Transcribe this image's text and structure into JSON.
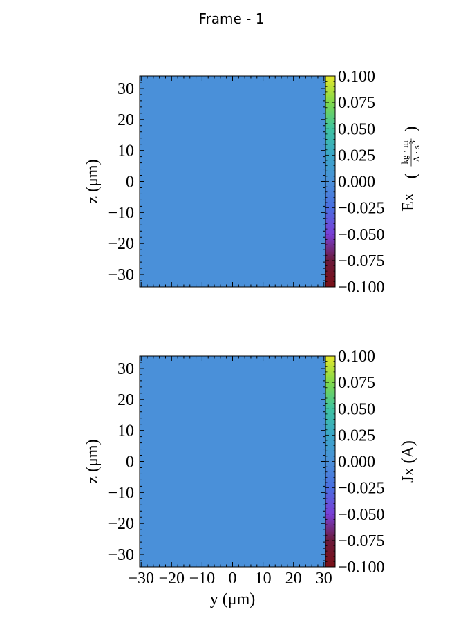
{
  "figure": {
    "title": "Frame - 1"
  },
  "colormap": [
    "#7a0f16",
    "#6b1a3a",
    "#7a3fd6",
    "#4a6ee0",
    "#4a90d9",
    "#3aa6c8",
    "#3ec3a0",
    "#7fd84a",
    "#e8e82a"
  ],
  "chart_data": [
    {
      "type": "heatmap",
      "title": "",
      "xlabel": "",
      "ylabel": "z  (μm)",
      "xlim": [
        -30.5,
        30.5
      ],
      "ylim": [
        -34,
        34
      ],
      "x_ticks": [],
      "y_ticks": [
        -30,
        -20,
        -10,
        0,
        10,
        20,
        30
      ],
      "y_tick_labels": [
        "−30",
        "−20",
        "−10",
        "0",
        "10",
        "20",
        "30"
      ],
      "field_value": 0.0,
      "fill_color": "#4a90d9",
      "colorbar": {
        "label": "Ex",
        "unit_numerator": "kg · m",
        "unit_denominator": "A · s",
        "unit_power": "3",
        "range": [
          -0.1,
          0.1
        ],
        "ticks": [
          -0.1,
          -0.075,
          -0.05,
          -0.025,
          0,
          0.025,
          0.05,
          0.075,
          0.1
        ],
        "tick_labels": [
          "−0.100",
          "−0.075",
          "−0.050",
          "−0.025",
          "0.000",
          "0.025",
          "0.050",
          "0.075",
          "0.100"
        ]
      }
    },
    {
      "type": "heatmap",
      "title": "",
      "xlabel": "y  (μm)",
      "ylabel": "z  (μm)",
      "xlim": [
        -30.5,
        30.5
      ],
      "ylim": [
        -34,
        34
      ],
      "x_ticks": [
        -30,
        -20,
        -10,
        0,
        10,
        20,
        30
      ],
      "x_tick_labels": [
        "−30",
        "−20",
        "−10",
        "0",
        "10",
        "20",
        "30"
      ],
      "y_ticks": [
        -30,
        -20,
        -10,
        0,
        10,
        20,
        30
      ],
      "y_tick_labels": [
        "−30",
        "−20",
        "−10",
        "0",
        "10",
        "20",
        "30"
      ],
      "field_value": 0.0,
      "fill_color": "#4a90d9",
      "colorbar": {
        "label": "Jx  (A)",
        "range": [
          -0.1,
          0.1
        ],
        "ticks": [
          -0.1,
          -0.075,
          -0.05,
          -0.025,
          0,
          0.025,
          0.05,
          0.075,
          0.1
        ],
        "tick_labels": [
          "−0.100",
          "−0.075",
          "−0.050",
          "−0.025",
          "0.000",
          "0.025",
          "0.050",
          "0.075",
          "0.100"
        ]
      }
    }
  ]
}
